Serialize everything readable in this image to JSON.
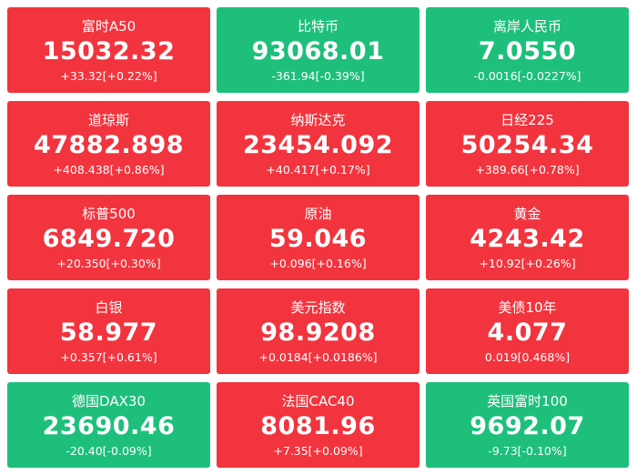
{
  "quotes": [
    {
      "name": "富时A50",
      "price": "15032.32",
      "change": "+33.32[+0.22%]",
      "color": "#f2343e"
    },
    {
      "name": "比特币",
      "price": "93068.01",
      "change": "-361.94[-0.39%]",
      "color": "#1ebf7b"
    },
    {
      "name": "离岸人民币",
      "price": "7.0550",
      "change": "-0.0016[-0.0227%]",
      "color": "#1ebf7b"
    },
    {
      "name": "道琼斯",
      "price": "47882.898",
      "change": "+408.438[+0.86%]",
      "color": "#f2343e"
    },
    {
      "name": "纳斯达克",
      "price": "23454.092",
      "change": "+40.417[+0.17%]",
      "color": "#f2343e"
    },
    {
      "name": "日经225",
      "price": "50254.34",
      "change": "+389.66[+0.78%]",
      "color": "#f2343e"
    },
    {
      "name": "标普500",
      "price": "6849.720",
      "change": "+20.350[+0.30%]",
      "color": "#f2343e"
    },
    {
      "name": "原油",
      "price": "59.046",
      "change": "+0.096[+0.16%]",
      "color": "#f2343e"
    },
    {
      "name": "黄金",
      "price": "4243.42",
      "change": "+10.92[+0.26%]",
      "color": "#f2343e"
    },
    {
      "name": "白银",
      "price": "58.977",
      "change": "+0.357[+0.61%]",
      "color": "#f2343e"
    },
    {
      "name": "美元指数",
      "price": "98.9208",
      "change": "+0.0184[+0.0186%]",
      "color": "#f2343e"
    },
    {
      "name": "美债10年",
      "price": "4.077",
      "change": "0.019[0.468%]",
      "color": "#f2343e"
    },
    {
      "name": "德国DAX30",
      "price": "23690.46",
      "change": "-20.40[-0.09%]",
      "color": "#1ebf7b"
    },
    {
      "name": "法国CAC40",
      "price": "8081.96",
      "change": "+7.35[+0.09%]",
      "color": "#f2343e"
    },
    {
      "name": "英国富时100",
      "price": "9692.07",
      "change": "-9.73[-0.10%]",
      "color": "#1ebf7b"
    }
  ]
}
